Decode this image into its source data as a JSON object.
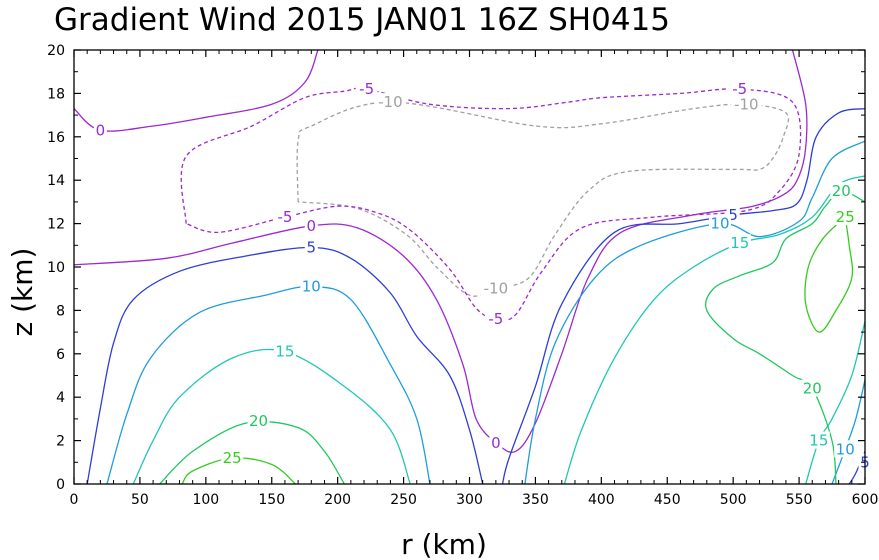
{
  "chart_data": {
    "type": "contour",
    "title": "Gradient Wind 2015 JAN01 16Z  SH0415",
    "xlabel": "r (km)",
    "ylabel": "z (km)",
    "xlim": [
      0,
      600
    ],
    "ylim": [
      0,
      20
    ],
    "xticks": [
      "0",
      "50",
      "100",
      "150",
      "200",
      "250",
      "300",
      "350",
      "400",
      "450",
      "500",
      "550",
      "600"
    ],
    "yticks": [
      "0",
      "2",
      "4",
      "6",
      "8",
      "10",
      "12",
      "14",
      "16",
      "18",
      "20"
    ],
    "grid": false,
    "levels": [
      {
        "level": -10,
        "color": "#a0a0a0",
        "dash": true,
        "label": "-10",
        "label_pos": [
          [
            240,
            17.6
          ],
          [
            510,
            17.5
          ],
          [
            320,
            9
          ]
        ],
        "paths": [
          [
            [
              170,
              13
            ],
            [
              170,
              15.8
            ],
            [
              180,
              16.5
            ],
            [
              240,
              17.6
            ],
            [
              350,
              16.5
            ],
            [
              400,
              16.6
            ],
            [
              470,
              17.3
            ],
            [
              510,
              17.5
            ],
            [
              540,
              17.1
            ],
            [
              538,
              16
            ],
            [
              530,
              15
            ],
            [
              520,
              14.5
            ],
            [
              500,
              14.5
            ],
            [
              420,
              14.4
            ],
            [
              390,
              13.5
            ],
            [
              365,
              11.5
            ],
            [
              345,
              9.5
            ],
            [
              320,
              9
            ],
            [
              300,
              8.7
            ],
            [
              275,
              10
            ],
            [
              252,
              11.5
            ],
            [
              215,
              12.7
            ],
            [
              170,
              13
            ]
          ]
        ]
      },
      {
        "level": -5,
        "color": "#9d28d2",
        "dash": true,
        "label": "-5",
        "label_pos": [
          [
            222,
            18.2
          ],
          [
            505,
            18.2
          ],
          [
            160,
            12.3
          ],
          [
            320,
            7.6
          ]
        ],
        "paths": [
          [
            [
              85,
              12
            ],
            [
              85,
              15.1
            ],
            [
              135,
              16.5
            ],
            [
              175,
              17.8
            ],
            [
              205,
              18.1
            ],
            [
              222,
              18.2
            ],
            [
              270,
              17.5
            ],
            [
              330,
              17.3
            ],
            [
              375,
              17.6
            ],
            [
              400,
              17.8
            ],
            [
              460,
              18
            ],
            [
              505,
              18.2
            ],
            [
              545,
              17.6
            ],
            [
              550,
              15.2
            ],
            [
              535,
              13.5
            ],
            [
              510,
              12.6
            ],
            [
              440,
              12.3
            ],
            [
              385,
              11.8
            ],
            [
              355,
              9.8
            ],
            [
              335,
              7.8
            ],
            [
              320,
              7.6
            ],
            [
              305,
              8.1
            ],
            [
              285,
              9.9
            ],
            [
              255,
              11.7
            ],
            [
              230,
              12.5
            ],
            [
              200,
              12.8
            ],
            [
              160,
              12.3
            ],
            [
              110,
              11.6
            ],
            [
              85,
              12
            ]
          ]
        ]
      },
      {
        "level": 0,
        "color": "#9d28d2",
        "dash": false,
        "label": "0",
        "label_pos": [
          [
            20,
            16.3
          ],
          [
            180,
            11.9
          ],
          [
            320,
            1.9
          ]
        ],
        "paths": [
          [
            [
              0,
              17.3
            ],
            [
              20,
              16.3
            ],
            [
              60,
              16.5
            ],
            [
              100,
              16.9
            ],
            [
              150,
              17.5
            ],
            [
              175,
              18.5
            ],
            [
              185,
              20
            ]
          ],
          [
            [
              545,
              20
            ],
            [
              555,
              17.5
            ],
            [
              555,
              15.5
            ],
            [
              550,
              14.2
            ],
            [
              540,
              13.4
            ],
            [
              515,
              12.8
            ],
            [
              470,
              12.4
            ],
            [
              415,
              11.6
            ],
            [
              390,
              9.5
            ],
            [
              370,
              6
            ],
            [
              350,
              2.8
            ],
            [
              335,
              1.5
            ],
            [
              320,
              1.9
            ],
            [
              305,
              3
            ],
            [
              295,
              5.5
            ],
            [
              275,
              8.5
            ],
            [
              250,
              10.5
            ],
            [
              215,
              11.8
            ],
            [
              180,
              11.9
            ],
            [
              120,
              11.1
            ],
            [
              70,
              10.4
            ],
            [
              0,
              10.1
            ]
          ]
        ]
      },
      {
        "level": 5,
        "color": "#2c3ed6",
        "dash": false,
        "label": "5",
        "label_pos": [
          [
            180,
            10.9
          ],
          [
            500,
            12.4
          ],
          [
            600,
            1
          ]
        ],
        "paths": [
          [
            [
              10,
              0
            ],
            [
              20,
              3.5
            ],
            [
              30,
              6.5
            ],
            [
              45,
              8.5
            ],
            [
              80,
              9.8
            ],
            [
              130,
              10.5
            ],
            [
              180,
              10.9
            ],
            [
              210,
              10.4
            ],
            [
              240,
              8.8
            ],
            [
              260,
              6.8
            ],
            [
              285,
              5
            ],
            [
              300,
              2.5
            ],
            [
              310,
              0
            ]
          ],
          [
            [
              600,
              17.3
            ],
            [
              580,
              17.1
            ],
            [
              563,
              16
            ],
            [
              556,
              14
            ],
            [
              548,
              12.9
            ],
            [
              530,
              12.6
            ],
            [
              500,
              12.4
            ],
            [
              460,
              12
            ],
            [
              410,
              11.6
            ],
            [
              370,
              8.3
            ],
            [
              350,
              4.5
            ],
            [
              330,
              1.2
            ],
            [
              325,
              0
            ]
          ],
          [
            [
              600,
              1.5
            ],
            [
              593,
              0.5
            ],
            [
              588,
              0
            ]
          ]
        ]
      },
      {
        "level": 10,
        "color": "#1f9ddc",
        "dash": false,
        "label": "10",
        "label_pos": [
          [
            180,
            9.1
          ],
          [
            490,
            12
          ],
          [
            585,
            1.6
          ]
        ],
        "paths": [
          [
            [
              25,
              0
            ],
            [
              40,
              3.2
            ],
            [
              58,
              5.8
            ],
            [
              95,
              7.9
            ],
            [
              145,
              8.7
            ],
            [
              180,
              9.1
            ],
            [
              210,
              8.5
            ],
            [
              240,
              5.5
            ],
            [
              260,
              3
            ],
            [
              270,
              0
            ]
          ],
          [
            [
              600,
              15.8
            ],
            [
              575,
              15
            ],
            [
              560,
              13.2
            ],
            [
              550,
              12.1
            ],
            [
              520,
              11.4
            ],
            [
              490,
              12
            ],
            [
              430,
              11
            ],
            [
              395,
              9.5
            ],
            [
              365,
              6.5
            ],
            [
              350,
              3
            ],
            [
              342,
              0
            ]
          ],
          [
            [
              600,
              4.8
            ],
            [
              593,
              3
            ],
            [
              585,
              1.6
            ],
            [
              575,
              0
            ]
          ]
        ]
      },
      {
        "level": 15,
        "color": "#1fc8b4",
        "dash": false,
        "label": "15",
        "label_pos": [
          [
            160,
            6.1
          ],
          [
            505,
            11.1
          ],
          [
            565,
            2
          ]
        ],
        "paths": [
          [
            [
              45,
              0
            ],
            [
              60,
              2
            ],
            [
              80,
              4
            ],
            [
              120,
              5.8
            ],
            [
              160,
              6.1
            ],
            [
              205,
              4.5
            ],
            [
              240,
              2.5
            ],
            [
              255,
              0
            ]
          ],
          [
            [
              600,
              14.2
            ],
            [
              580,
              13.8
            ],
            [
              560,
              12.3
            ],
            [
              535,
              11.5
            ],
            [
              505,
              11.1
            ],
            [
              470,
              10
            ],
            [
              440,
              8.5
            ],
            [
              410,
              5.8
            ],
            [
              385,
              2.5
            ],
            [
              372,
              0
            ]
          ],
          [
            [
              600,
              7.5
            ],
            [
              590,
              5
            ],
            [
              575,
              3
            ],
            [
              565,
              2
            ],
            [
              555,
              0
            ]
          ]
        ]
      },
      {
        "level": 20,
        "color": "#1fc85f",
        "dash": false,
        "label": "20",
        "label_pos": [
          [
            140,
            2.9
          ],
          [
            582,
            13.5
          ],
          [
            560,
            4.4
          ]
        ],
        "paths": [
          [
            [
              65,
              0
            ],
            [
              90,
              1.5
            ],
            [
              130,
              2.8
            ],
            [
              170,
              2.6
            ],
            [
              190,
              1.5
            ],
            [
              205,
              0
            ]
          ],
          [
            [
              600,
              13
            ],
            [
              582,
              13.5
            ],
            [
              570,
              12.8
            ],
            [
              560,
              12
            ],
            [
              540,
              11.3
            ],
            [
              530,
              10.2
            ],
            [
              505,
              9.6
            ],
            [
              485,
              9
            ],
            [
              480,
              8
            ],
            [
              500,
              6.7
            ],
            [
              520,
              6
            ],
            [
              545,
              5
            ],
            [
              560,
              4.4
            ],
            [
              575,
              2
            ],
            [
              578,
              0
            ]
          ]
        ]
      },
      {
        "level": 25,
        "color": "#36cc1e",
        "dash": false,
        "label": "25",
        "label_pos": [
          [
            120,
            1.2
          ],
          [
            585,
            12.3
          ]
        ],
        "paths": [
          [
            [
              82,
              0
            ],
            [
              90,
              0.6
            ],
            [
              120,
              1.2
            ],
            [
              150,
              0.9
            ],
            [
              168,
              0
            ]
          ],
          [
            [
              585,
              12.3
            ],
            [
              568,
              11.3
            ],
            [
              557,
              10
            ],
            [
              555,
              8.3
            ],
            [
              565,
              7
            ],
            [
              578,
              8
            ],
            [
              590,
              9.5
            ],
            [
              588,
              11
            ],
            [
              585,
              12.3
            ]
          ]
        ]
      }
    ]
  }
}
